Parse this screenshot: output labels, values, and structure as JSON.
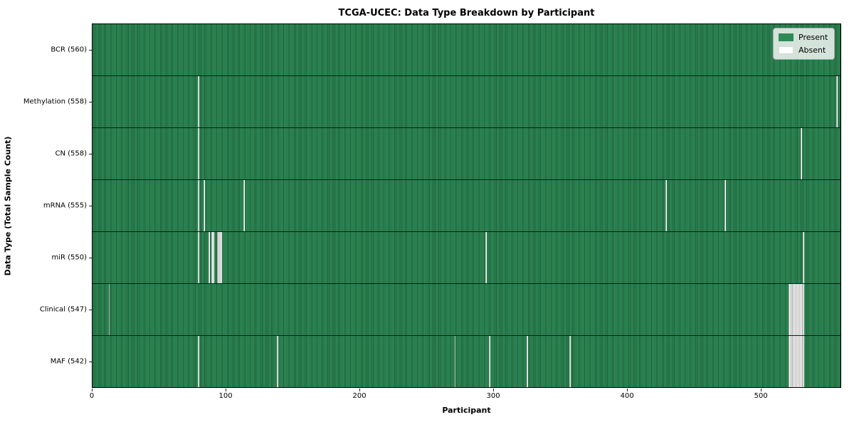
{
  "chart_data": {
    "type": "heatmap",
    "title": "TCGA-UCEC: Data Type Breakdown by Participant",
    "xlabel": "Participant",
    "ylabel": "Data Type (Total Sample Count)",
    "xlim": [
      0,
      560
    ],
    "x_ticks": [
      0,
      100,
      200,
      300,
      400,
      500
    ],
    "n_participants": 560,
    "grid": false,
    "legend_position": "upper right",
    "cell_values": "binary presence/absence per participant per data type",
    "colors": {
      "present": "#2e8b57",
      "present_stripe_dark": "#1d5c39",
      "absent": "#ffffff",
      "row_divider": "#161616",
      "legend_bg": "#f2f2f0",
      "legend_border": "#a8a8a8"
    },
    "rows": [
      {
        "label": "BCR (560)",
        "data_type": "BCR",
        "total_sample_count": 560,
        "absent_participants": []
      },
      {
        "label": "Methylation (558)",
        "data_type": "Methylation",
        "total_sample_count": 558,
        "absent_participants": [
          79,
          557
        ]
      },
      {
        "label": "CN (558)",
        "data_type": "CN",
        "total_sample_count": 558,
        "absent_participants": [
          79,
          530
        ]
      },
      {
        "label": "mRNA (555)",
        "data_type": "mRNA",
        "total_sample_count": 555,
        "absent_participants": [
          79,
          83,
          113,
          429,
          473
        ]
      },
      {
        "label": "miR (550)",
        "data_type": "miR",
        "total_sample_count": 550,
        "absent_participants": [
          79,
          87,
          89,
          90,
          93,
          94,
          95,
          96,
          294,
          532
        ]
      },
      {
        "label": "Clinical (547)",
        "data_type": "Clinical",
        "total_sample_count": 547,
        "absent_participants": [
          12,
          521,
          522,
          523,
          524,
          525,
          526,
          527,
          528,
          529,
          530,
          531,
          532
        ]
      },
      {
        "label": "MAF (542)",
        "data_type": "MAF",
        "total_sample_count": 542,
        "absent_participants": [
          79,
          138,
          271,
          297,
          325,
          357,
          521,
          522,
          523,
          524,
          525,
          526,
          527,
          528,
          529,
          530,
          531,
          532
        ]
      }
    ]
  },
  "legend": {
    "items": [
      {
        "label": "Present",
        "color": "#2e8b57"
      },
      {
        "label": "Absent",
        "color": "#ffffff"
      }
    ]
  }
}
